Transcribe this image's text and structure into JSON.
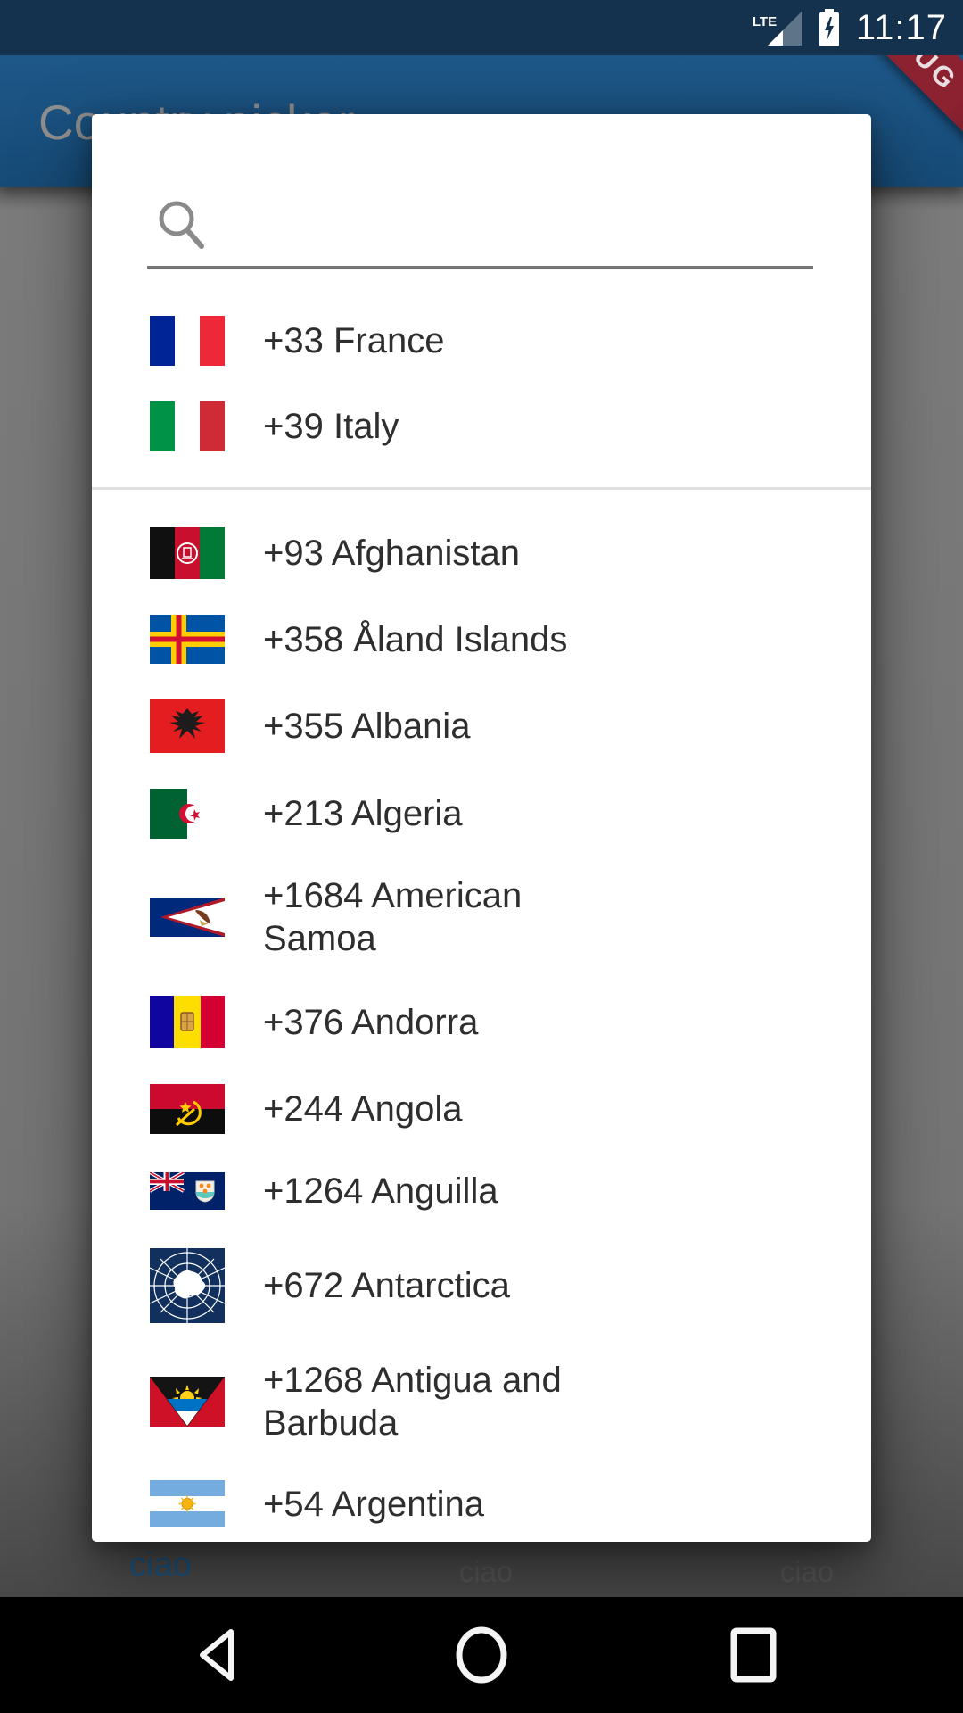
{
  "status_bar": {
    "network": "LTE",
    "time": "11:17"
  },
  "debug_banner": {
    "label": "DEBUG"
  },
  "app_bar": {
    "title": "Country picker"
  },
  "dialog": {
    "search": {
      "placeholder": ""
    },
    "favorites": [
      {
        "code": "fr",
        "label": "+33 France"
      },
      {
        "code": "it",
        "label": "+39 Italy"
      }
    ],
    "countries": [
      {
        "code": "af",
        "label": "+93 Afghanistan"
      },
      {
        "code": "ax",
        "label": "+358 Åland Islands"
      },
      {
        "code": "al",
        "label": "+355 Albania"
      },
      {
        "code": "dz",
        "label": "+213 Algeria"
      },
      {
        "code": "as",
        "label": "+1684 American\nSamoa"
      },
      {
        "code": "ad",
        "label": "+376 Andorra"
      },
      {
        "code": "ao",
        "label": "+244 Angola"
      },
      {
        "code": "ai",
        "label": "+1264 Anguilla"
      },
      {
        "code": "aq",
        "label": "+672 Antarctica"
      },
      {
        "code": "ag",
        "label": "+1268 Antigua and\nBarbuda"
      },
      {
        "code": "ar",
        "label": "+54 Argentina"
      }
    ]
  },
  "tabs": [
    {
      "label": "ciao",
      "active": true
    },
    {
      "label": "ciao",
      "active": false
    },
    {
      "label": "ciao",
      "active": false
    }
  ],
  "nav_bar": {
    "back": "back",
    "home": "home",
    "recents": "recents"
  },
  "colors": {
    "status_bar": "#14324E",
    "app_bar": "#1B5282",
    "app_bar_title": "#8F8F8F",
    "debug_ribbon": "#8C2130",
    "active_tab": "#1C5480",
    "inactive_tab": "#565656",
    "row_text": "#2E2E2E",
    "divider": "#E0E0E0",
    "search_underline": "#757575"
  }
}
